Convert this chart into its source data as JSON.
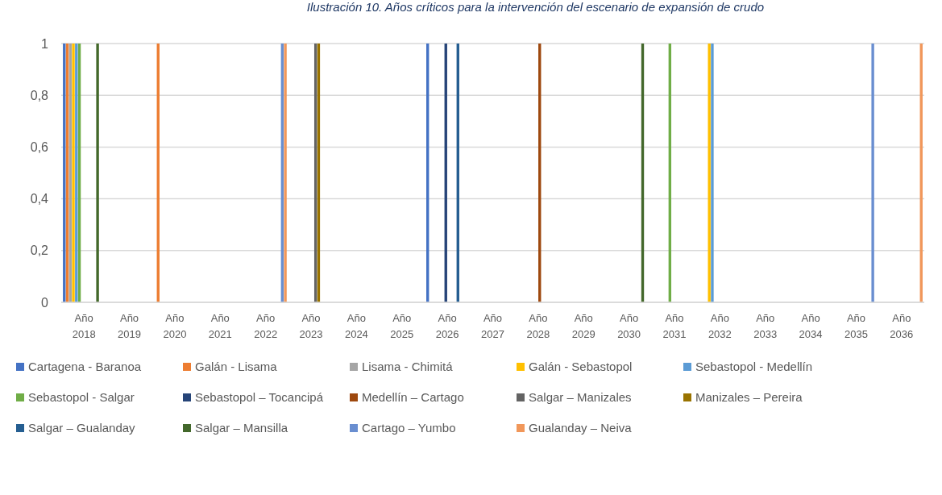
{
  "chart_data": {
    "type": "bar",
    "title": "Ilustración 10. Años críticos para la intervención del escenario de expansión de crudo",
    "categories": [
      "Año 2018",
      "Año 2019",
      "Año 2020",
      "Año 2021",
      "Año 2022",
      "Año 2023",
      "Año 2024",
      "Año 2025",
      "Año 2026",
      "Año 2027",
      "Año 2028",
      "Año 2029",
      "Año 2030",
      "Año 2031",
      "Año 2032",
      "Año 2033",
      "Año 2034",
      "Año 2035",
      "Año 2036"
    ],
    "series": [
      {
        "name": "Cartagena - Baranoa",
        "color": "#4472c4",
        "values": [
          1,
          0,
          0,
          0,
          0,
          0,
          0,
          0,
          1,
          0,
          0,
          0,
          0,
          0,
          0,
          0,
          0,
          0,
          0
        ]
      },
      {
        "name": "Galán - Lisama",
        "color": "#ed7d31",
        "values": [
          1,
          0,
          1,
          0,
          0,
          0,
          0,
          0,
          0,
          0,
          0,
          0,
          0,
          0,
          0,
          0,
          0,
          0,
          0
        ]
      },
      {
        "name": "Lisama - Chimitá",
        "color": "#a5a5a5",
        "values": [
          1,
          0,
          0,
          0,
          0,
          0,
          0,
          0,
          0,
          0,
          0,
          0,
          0,
          0,
          0,
          0,
          0,
          0,
          0
        ]
      },
      {
        "name": "Galán - Sebastopol",
        "color": "#ffc000",
        "values": [
          1,
          0,
          0,
          0,
          0,
          0,
          0,
          0,
          0,
          0,
          0,
          0,
          0,
          0,
          1,
          0,
          0,
          0,
          0
        ]
      },
      {
        "name": "Sebastopol - Medellín",
        "color": "#5b9bd5",
        "values": [
          1,
          0,
          0,
          0,
          0,
          0,
          0,
          0,
          0,
          0,
          0,
          0,
          0,
          0,
          1,
          0,
          0,
          0,
          0
        ]
      },
      {
        "name": "Sebastopol - Salgar",
        "color": "#70ad47",
        "values": [
          1,
          0,
          0,
          0,
          0,
          0,
          0,
          0,
          0,
          0,
          0,
          0,
          0,
          1,
          0,
          0,
          0,
          0,
          0
        ]
      },
      {
        "name": "Sebastopol – Tocancipá",
        "color": "#264478",
        "values": [
          0,
          0,
          0,
          0,
          0,
          0,
          0,
          0,
          1,
          0,
          0,
          0,
          0,
          0,
          0,
          0,
          0,
          0,
          0
        ]
      },
      {
        "name": "Medellín – Cartago",
        "color": "#9e480e",
        "values": [
          0,
          0,
          0,
          0,
          0,
          0,
          0,
          0,
          0,
          0,
          1,
          0,
          0,
          0,
          0,
          0,
          0,
          0,
          0
        ]
      },
      {
        "name": "Salgar – Manizales",
        "color": "#636363",
        "values": [
          0,
          0,
          0,
          0,
          0,
          1,
          0,
          0,
          0,
          0,
          0,
          0,
          0,
          0,
          0,
          0,
          0,
          0,
          0
        ]
      },
      {
        "name": "Manizales – Pereira",
        "color": "#997300",
        "values": [
          0,
          0,
          0,
          0,
          0,
          1,
          0,
          0,
          0,
          0,
          0,
          0,
          0,
          0,
          0,
          0,
          0,
          0,
          0
        ]
      },
      {
        "name": "Salgar – Gualanday",
        "color": "#255e91",
        "values": [
          0,
          0,
          0,
          0,
          0,
          0,
          0,
          0,
          1,
          0,
          0,
          0,
          0,
          0,
          0,
          0,
          0,
          0,
          0
        ]
      },
      {
        "name": "Salgar – Mansilla",
        "color": "#43682b",
        "values": [
          1,
          0,
          0,
          0,
          0,
          0,
          0,
          0,
          0,
          0,
          0,
          0,
          1,
          0,
          0,
          0,
          0,
          0,
          0
        ]
      },
      {
        "name": "Cartago – Yumbo",
        "color": "#698ed0",
        "values": [
          0,
          0,
          0,
          0,
          1,
          0,
          0,
          0,
          0,
          0,
          0,
          0,
          0,
          0,
          0,
          0,
          0,
          1,
          0
        ]
      },
      {
        "name": "Gualanday – Neiva",
        "color": "#f1975a",
        "values": [
          0,
          0,
          0,
          0,
          1,
          0,
          0,
          0,
          0,
          0,
          0,
          0,
          0,
          0,
          0,
          0,
          0,
          0,
          1
        ]
      }
    ],
    "ylim": [
      0,
      1
    ],
    "yticks": [
      0,
      {
        "value": 0.2,
        "label": "0,2"
      },
      {
        "value": 0.4,
        "label": "0,4"
      },
      {
        "value": 0.6,
        "label": "0,6"
      },
      {
        "value": 0.8,
        "label": "0,8"
      },
      1
    ],
    "grid": "y",
    "legend": "bottom"
  }
}
